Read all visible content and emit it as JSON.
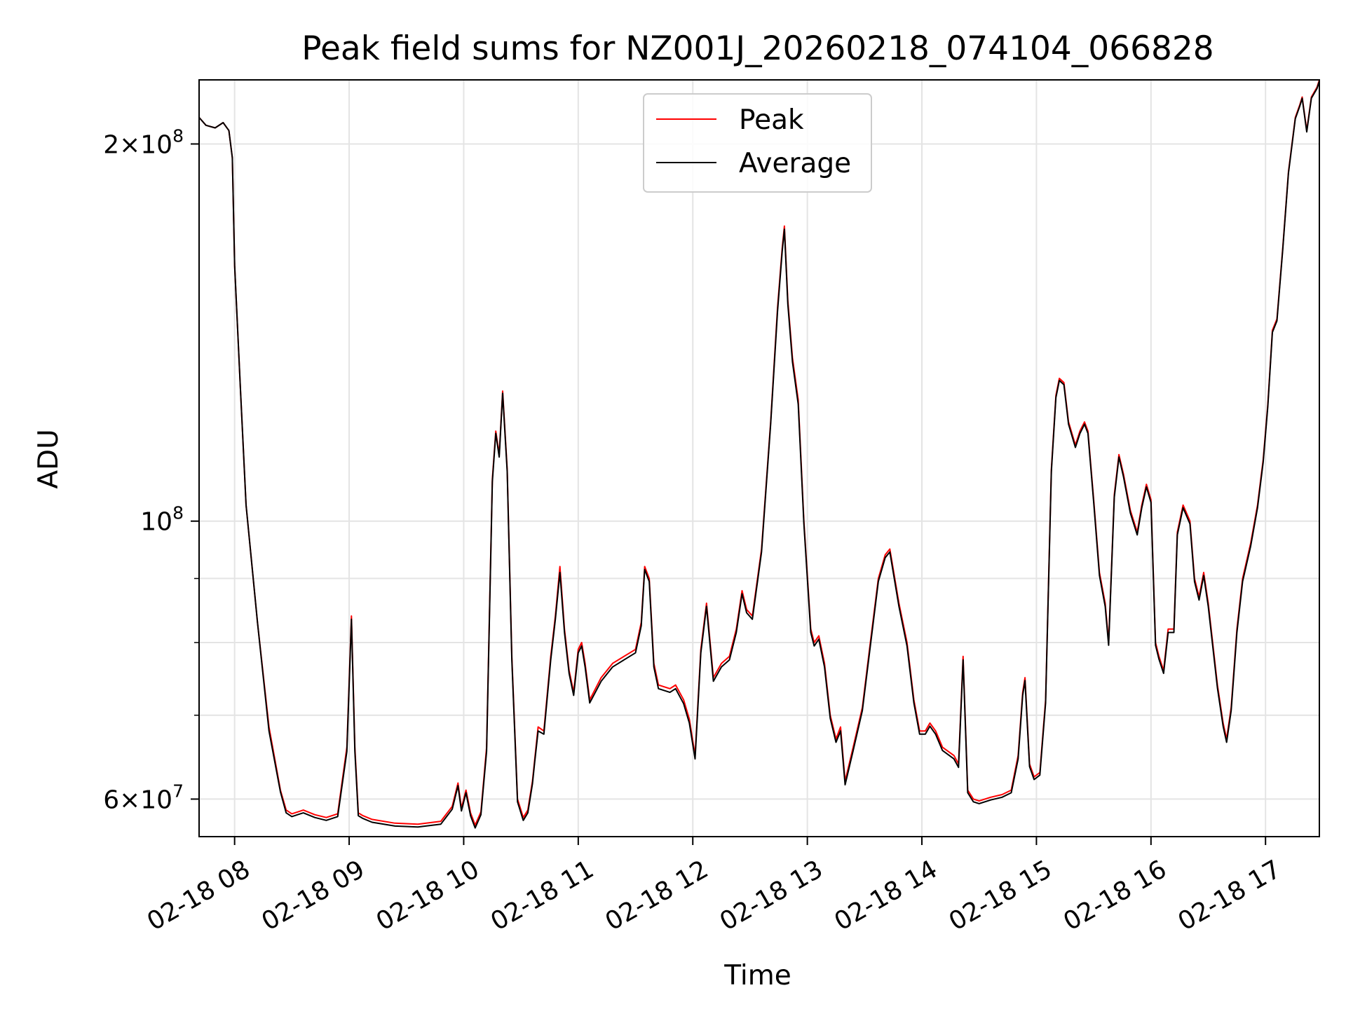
{
  "chart_data": {
    "type": "line",
    "title": "Peak field sums for NZ001J_20260218_074104_066828",
    "xlabel": "Time",
    "ylabel": "ADU",
    "x_unit": "hours (time of day, 2026-02-18)",
    "xlim": [
      7.69,
      17.47
    ],
    "ylim": [
      56000000,
      225000000
    ],
    "yscale": "log",
    "grid": true,
    "legend_position": "upper-center",
    "x_ticks": [
      {
        "value": 8,
        "label": "02-18 08"
      },
      {
        "value": 9,
        "label": "02-18 09"
      },
      {
        "value": 10,
        "label": "02-18 10"
      },
      {
        "value": 11,
        "label": "02-18 11"
      },
      {
        "value": 12,
        "label": "02-18 12"
      },
      {
        "value": 13,
        "label": "02-18 13"
      },
      {
        "value": 14,
        "label": "02-18 14"
      },
      {
        "value": 15,
        "label": "02-18 15"
      },
      {
        "value": 16,
        "label": "02-18 16"
      },
      {
        "value": 17,
        "label": "02-18 17"
      }
    ],
    "y_ticks": [
      {
        "value": 60000000,
        "base": "6",
        "exp": "7"
      },
      {
        "value": 100000000,
        "base": "",
        "exp": "8"
      },
      {
        "value": 200000000,
        "base": "2",
        "exp": "8"
      }
    ],
    "y_minor_ticks": [
      70000000,
      80000000,
      90000000
    ],
    "x": [
      7.69,
      7.75,
      7.83,
      7.9,
      7.95,
      7.98,
      8.0,
      8.05,
      8.1,
      8.2,
      8.3,
      8.4,
      8.45,
      8.5,
      8.55,
      8.6,
      8.7,
      8.8,
      8.9,
      8.98,
      9.02,
      9.05,
      9.08,
      9.12,
      9.2,
      9.4,
      9.6,
      9.8,
      9.9,
      9.95,
      9.98,
      10.02,
      10.06,
      10.1,
      10.15,
      10.2,
      10.25,
      10.28,
      10.31,
      10.34,
      10.38,
      10.42,
      10.47,
      10.52,
      10.56,
      10.6,
      10.62,
      10.65,
      10.7,
      10.76,
      10.8,
      10.84,
      10.88,
      10.92,
      10.96,
      11.0,
      11.03,
      11.06,
      11.1,
      11.2,
      11.3,
      11.4,
      11.5,
      11.55,
      11.58,
      11.62,
      11.66,
      11.7,
      11.8,
      11.85,
      11.92,
      11.97,
      12.02,
      12.07,
      12.12,
      12.18,
      12.25,
      12.32,
      12.38,
      12.43,
      12.47,
      12.52,
      12.6,
      12.68,
      12.74,
      12.78,
      12.8,
      12.83,
      12.87,
      12.92,
      12.97,
      13.03,
      13.06,
      13.1,
      13.15,
      13.2,
      13.25,
      13.29,
      13.33,
      13.4,
      13.48,
      13.55,
      13.62,
      13.68,
      13.72,
      13.8,
      13.87,
      13.93,
      13.98,
      14.03,
      14.07,
      14.12,
      14.18,
      14.28,
      14.32,
      14.36,
      14.4,
      14.45,
      14.5,
      14.6,
      14.7,
      14.78,
      14.84,
      14.88,
      14.9,
      14.94,
      14.98,
      15.03,
      15.08,
      15.13,
      15.17,
      15.2,
      15.24,
      15.28,
      15.34,
      15.38,
      15.42,
      15.45,
      15.5,
      15.55,
      15.6,
      15.63,
      15.68,
      15.72,
      15.76,
      15.82,
      15.88,
      15.92,
      15.96,
      16.0,
      16.04,
      16.07,
      16.11,
      16.15,
      16.2,
      16.23,
      16.28,
      16.34,
      16.38,
      16.42,
      16.46,
      16.5,
      16.58,
      16.63,
      16.66,
      16.7,
      16.75,
      16.8,
      16.87,
      16.93,
      16.98,
      17.02,
      17.06,
      17.1,
      17.15,
      17.2,
      17.26,
      17.3,
      17.32,
      17.36,
      17.4,
      17.45,
      17.47
    ],
    "series": [
      {
        "name": "Peak",
        "color": "#ff0000",
        "values": [
          210000000,
          207000000,
          206000000,
          208000000,
          205000000,
          195000000,
          160000000,
          128000000,
          103000000,
          83000000,
          68500000,
          61000000,
          58800000,
          58400000,
          58600000,
          58800000,
          58300000,
          58000000,
          58400000,
          66000000,
          84000000,
          66000000,
          58500000,
          58200000,
          57800000,
          57400000,
          57300000,
          57600000,
          59200000,
          61800000,
          59000000,
          61000000,
          58500000,
          57200000,
          58600000,
          66000000,
          108000000,
          118000000,
          113000000,
          127000000,
          110000000,
          78000000,
          60000000,
          58000000,
          58800000,
          62000000,
          64500000,
          68500000,
          68000000,
          78000000,
          84000000,
          92000000,
          82000000,
          76000000,
          73000000,
          79000000,
          80000000,
          77000000,
          72000000,
          75000000,
          77000000,
          78000000,
          79000000,
          83000000,
          92000000,
          90000000,
          77000000,
          74000000,
          73500000,
          74000000,
          72000000,
          69500000,
          65000000,
          79000000,
          86000000,
          75000000,
          77000000,
          78000000,
          82000000,
          88000000,
          85000000,
          84000000,
          95000000,
          120000000,
          148000000,
          165000000,
          172000000,
          150000000,
          135000000,
          125000000,
          100000000,
          82000000,
          80000000,
          81000000,
          77000000,
          70000000,
          67000000,
          68500000,
          62000000,
          66000000,
          71000000,
          80000000,
          90000000,
          94000000,
          95000000,
          86000000,
          80000000,
          72000000,
          68000000,
          68000000,
          69000000,
          68000000,
          66000000,
          65000000,
          64000000,
          78000000,
          61000000,
          60000000,
          59800000,
          60200000,
          60500000,
          61000000,
          65000000,
          73000000,
          75000000,
          64000000,
          62500000,
          63000000,
          72000000,
          110000000,
          126000000,
          130000000,
          129000000,
          120000000,
          115000000,
          118000000,
          120000000,
          118000000,
          104000000,
          91000000,
          86000000,
          80000000,
          105000000,
          113000000,
          109000000,
          102000000,
          98000000,
          103000000,
          107000000,
          104000000,
          80000000,
          78000000,
          76000000,
          82000000,
          82000000,
          98000000,
          103000000,
          100000000,
          90000000,
          87000000,
          91000000,
          86000000,
          74000000,
          69000000,
          67000000,
          71000000,
          82000000,
          90000000,
          96000000,
          103000000,
          112000000,
          124000000,
          142000000,
          145000000,
          165000000,
          190000000,
          210000000,
          215000000,
          218000000,
          205000000,
          218000000,
          222000000,
          225000000
        ]
      },
      {
        "name": "Average",
        "color": "#000000",
        "values": [
          210000000,
          207000000,
          206000000,
          208000000,
          205000000,
          195000000,
          160000000,
          128000000,
          103000000,
          83000000,
          68000000,
          60800000,
          58500000,
          58100000,
          58300000,
          58500000,
          58000000,
          57700000,
          58100000,
          65500000,
          83500000,
          65500000,
          58200000,
          57900000,
          57500000,
          57100000,
          57000000,
          57300000,
          58900000,
          61500000,
          58700000,
          60700000,
          58200000,
          56900000,
          58300000,
          65500000,
          107500000,
          117500000,
          112500000,
          126500000,
          109500000,
          77500000,
          59700000,
          57700000,
          58500000,
          61700000,
          64200000,
          68000000,
          67600000,
          77500000,
          83500000,
          91000000,
          81500000,
          75600000,
          72600000,
          78500000,
          79500000,
          76500000,
          71600000,
          74500000,
          76500000,
          77500000,
          78500000,
          82500000,
          91500000,
          89500000,
          76500000,
          73500000,
          73000000,
          73500000,
          71500000,
          69000000,
          64600000,
          78500000,
          85500000,
          74500000,
          76500000,
          77500000,
          81500000,
          87500000,
          84500000,
          83500000,
          94500000,
          119500000,
          147000000,
          164000000,
          171000000,
          149000000,
          134000000,
          124000000,
          99500000,
          81500000,
          79500000,
          80500000,
          76500000,
          69600000,
          66600000,
          68000000,
          61600000,
          65600000,
          70600000,
          79500000,
          89500000,
          93500000,
          94500000,
          85500000,
          79500000,
          71600000,
          67600000,
          67600000,
          68600000,
          67600000,
          65600000,
          64600000,
          63600000,
          77500000,
          60700000,
          59700000,
          59500000,
          59900000,
          60200000,
          60700000,
          64600000,
          72600000,
          74600000,
          63700000,
          62200000,
          62700000,
          71600000,
          109500000,
          125500000,
          129500000,
          128500000,
          119500000,
          114500000,
          117500000,
          119500000,
          117500000,
          103500000,
          90500000,
          85500000,
          79600000,
          104500000,
          112500000,
          108500000,
          101500000,
          97500000,
          102500000,
          106500000,
          103500000,
          79600000,
          77600000,
          75600000,
          81500000,
          81500000,
          97500000,
          102500000,
          99500000,
          89500000,
          86500000,
          90500000,
          85500000,
          73600000,
          68600000,
          66600000,
          70600000,
          81500000,
          89500000,
          95500000,
          102500000,
          111500000,
          123500000,
          141500000,
          144500000,
          164500000,
          189500000,
          209500000,
          214500000,
          217500000,
          204500000,
          217500000,
          221500000,
          224500000
        ]
      }
    ]
  }
}
